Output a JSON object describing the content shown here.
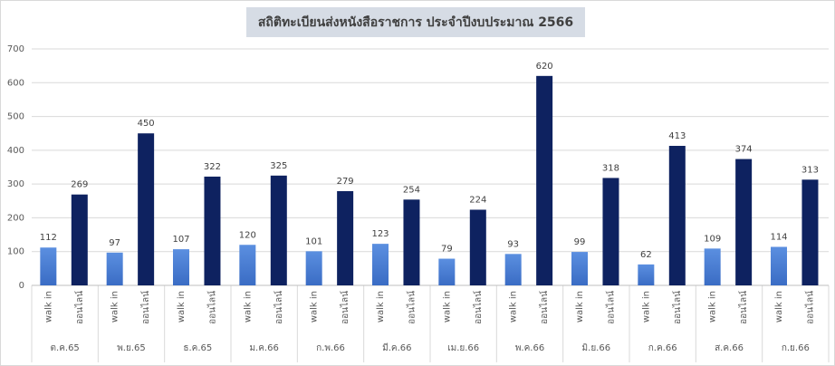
{
  "chart_data": {
    "type": "bar",
    "title": "สถิติทะเบียนส่งหนังสือราชการ ประจำปีงบประมาณ 2566",
    "categories": [
      "ต.ค.65",
      "พ.ย.65",
      "ธ.ค.65",
      "ม.ค.66",
      "ก.พ.66",
      "มี.ค.66",
      "เม.ย.66",
      "พ.ค.66",
      "มิ.ย.66",
      "ก.ค.66",
      "ส.ค.66",
      "ก.ย.66"
    ],
    "series": [
      {
        "name": "walk in",
        "color": "#4a7fd4",
        "values": [
          112,
          97,
          107,
          120,
          101,
          123,
          79,
          93,
          99,
          62,
          109,
          114
        ]
      },
      {
        "name": "ออนไลน์",
        "color": "#0e2260",
        "values": [
          269,
          450,
          322,
          325,
          279,
          254,
          224,
          620,
          318,
          413,
          374,
          313
        ]
      }
    ],
    "ylim": [
      0,
      700
    ],
    "yticks": [
      0,
      100,
      200,
      300,
      400,
      500,
      600,
      700
    ],
    "grid": true
  }
}
